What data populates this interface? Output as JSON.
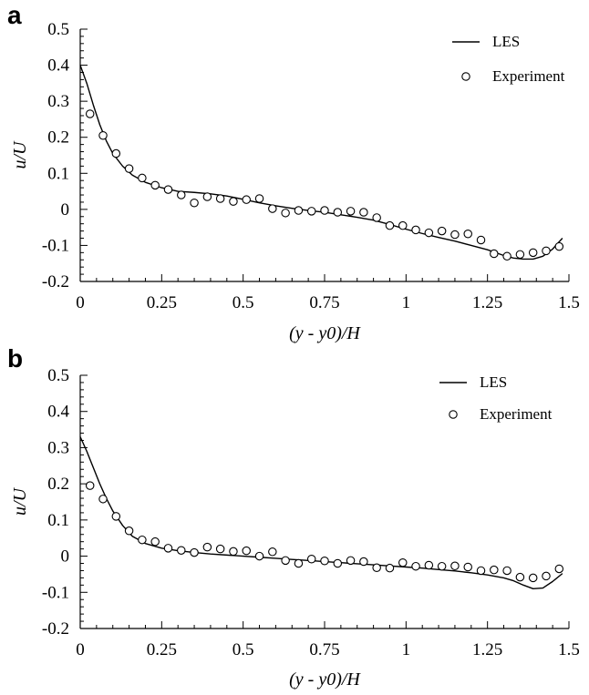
{
  "chart_data": [
    {
      "panel": "a",
      "type": "line",
      "xlabel": "(y - y0)/H",
      "ylabel": "u/U",
      "xlim": [
        0,
        1.5
      ],
      "ylim": [
        -0.2,
        0.5
      ],
      "xticks": [
        "0",
        "0.25",
        "0.5",
        "0.75",
        "1",
        "1.25",
        "1.5"
      ],
      "yticks": [
        "-0.2",
        "-0.1",
        "0",
        "0.1",
        "0.2",
        "0.3",
        "0.4",
        "0.5"
      ],
      "legend_position": "top-right",
      "series": [
        {
          "name": "LES",
          "style": "line",
          "x": [
            0,
            0.02,
            0.04,
            0.06,
            0.08,
            0.1,
            0.13,
            0.16,
            0.2,
            0.25,
            0.3,
            0.35,
            0.4,
            0.45,
            0.5,
            0.55,
            0.6,
            0.65,
            0.7,
            0.75,
            0.8,
            0.85,
            0.9,
            0.95,
            1.0,
            1.05,
            1.1,
            1.15,
            1.2,
            1.25,
            1.3,
            1.33,
            1.36,
            1.39,
            1.42,
            1.45,
            1.48
          ],
          "y": [
            0.4,
            0.35,
            0.29,
            0.235,
            0.19,
            0.155,
            0.12,
            0.095,
            0.075,
            0.06,
            0.05,
            0.047,
            0.043,
            0.037,
            0.028,
            0.018,
            0.01,
            0.003,
            -0.003,
            -0.008,
            -0.015,
            -0.022,
            -0.03,
            -0.042,
            -0.055,
            -0.067,
            -0.078,
            -0.088,
            -0.1,
            -0.112,
            -0.128,
            -0.135,
            -0.138,
            -0.138,
            -0.13,
            -0.11,
            -0.08
          ]
        },
        {
          "name": "Experiment",
          "style": "marker-circle",
          "x": [
            0.03,
            0.07,
            0.11,
            0.15,
            0.19,
            0.23,
            0.27,
            0.31,
            0.35,
            0.39,
            0.43,
            0.47,
            0.51,
            0.55,
            0.59,
            0.63,
            0.67,
            0.71,
            0.75,
            0.79,
            0.83,
            0.87,
            0.91,
            0.95,
            0.99,
            1.03,
            1.07,
            1.11,
            1.15,
            1.19,
            1.23,
            1.27,
            1.31,
            1.35,
            1.39,
            1.43,
            1.47
          ],
          "y": [
            0.265,
            0.205,
            0.155,
            0.113,
            0.087,
            0.067,
            0.055,
            0.04,
            0.018,
            0.035,
            0.03,
            0.022,
            0.027,
            0.03,
            0.002,
            -0.01,
            -0.003,
            -0.005,
            -0.003,
            -0.008,
            -0.005,
            -0.008,
            -0.023,
            -0.045,
            -0.045,
            -0.057,
            -0.065,
            -0.06,
            -0.07,
            -0.068,
            -0.085,
            -0.123,
            -0.13,
            -0.125,
            -0.12,
            -0.115,
            -0.103
          ]
        }
      ]
    },
    {
      "panel": "b",
      "type": "line",
      "xlabel": "(y - y0)/H",
      "ylabel": "u/U",
      "xlim": [
        0,
        1.5
      ],
      "ylim": [
        -0.2,
        0.5
      ],
      "xticks": [
        "0",
        "0.25",
        "0.5",
        "0.75",
        "1",
        "1.25",
        "1.5"
      ],
      "yticks": [
        "-0.2",
        "-0.1",
        "0",
        "0.1",
        "0.2",
        "0.3",
        "0.4",
        "0.5"
      ],
      "legend_position": "top-right",
      "series": [
        {
          "name": "LES",
          "style": "line",
          "x": [
            0,
            0.02,
            0.04,
            0.06,
            0.08,
            0.1,
            0.13,
            0.16,
            0.2,
            0.25,
            0.3,
            0.35,
            0.4,
            0.45,
            0.5,
            0.55,
            0.6,
            0.65,
            0.7,
            0.75,
            0.8,
            0.85,
            0.9,
            0.95,
            1.0,
            1.05,
            1.1,
            1.15,
            1.2,
            1.25,
            1.3,
            1.33,
            1.36,
            1.39,
            1.42,
            1.45,
            1.48
          ],
          "y": [
            0.33,
            0.29,
            0.245,
            0.2,
            0.16,
            0.125,
            0.085,
            0.055,
            0.035,
            0.022,
            0.015,
            0.01,
            0.006,
            0.003,
            0.0,
            -0.003,
            -0.006,
            -0.009,
            -0.012,
            -0.015,
            -0.018,
            -0.021,
            -0.024,
            -0.027,
            -0.03,
            -0.033,
            -0.037,
            -0.041,
            -0.046,
            -0.052,
            -0.06,
            -0.068,
            -0.08,
            -0.09,
            -0.088,
            -0.07,
            -0.048
          ]
        },
        {
          "name": "Experiment",
          "style": "marker-circle",
          "x": [
            0.03,
            0.07,
            0.11,
            0.15,
            0.19,
            0.23,
            0.27,
            0.31,
            0.35,
            0.39,
            0.43,
            0.47,
            0.51,
            0.55,
            0.59,
            0.63,
            0.67,
            0.71,
            0.75,
            0.79,
            0.83,
            0.87,
            0.91,
            0.95,
            0.99,
            1.03,
            1.07,
            1.11,
            1.15,
            1.19,
            1.23,
            1.27,
            1.31,
            1.35,
            1.39,
            1.43,
            1.47
          ],
          "y": [
            0.195,
            0.158,
            0.11,
            0.07,
            0.045,
            0.04,
            0.022,
            0.016,
            0.01,
            0.025,
            0.02,
            0.013,
            0.015,
            0.0,
            0.012,
            -0.012,
            -0.02,
            -0.008,
            -0.013,
            -0.02,
            -0.012,
            -0.015,
            -0.032,
            -0.033,
            -0.018,
            -0.028,
            -0.025,
            -0.028,
            -0.027,
            -0.03,
            -0.04,
            -0.038,
            -0.04,
            -0.058,
            -0.06,
            -0.055,
            -0.035
          ]
        }
      ]
    }
  ]
}
